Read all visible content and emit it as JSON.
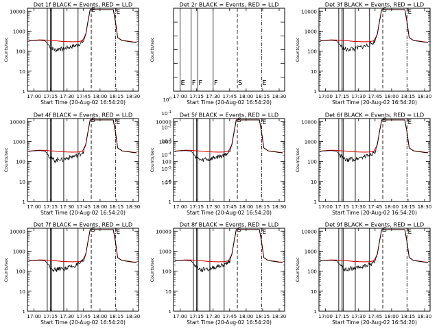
{
  "chart_data": {
    "type": "line",
    "grid": false,
    "x_ticks": [
      "17:00",
      "17:15",
      "17:30",
      "17:45",
      "18:00",
      "18:15",
      "18:30"
    ],
    "xlabel": "Start Time (20-Aug-02 16:54:20)",
    "ylabel": "Counts/sec",
    "xlim_minutes_from_1700": [
      -6,
      95
    ],
    "series_colors": {
      "events": "#000000",
      "lld": "#d40000"
    },
    "standard_panel": {
      "y_scale": "log",
      "ylim": [
        1,
        14000
      ],
      "y_ticks": [
        "1",
        "10",
        "100",
        "1000",
        "10000"
      ],
      "markers": [
        {
          "label": "",
          "time": "17:12",
          "style": "solid"
        },
        {
          "label": "",
          "time": "17:15",
          "style": "solid"
        },
        {
          "label": "",
          "time": "17:16",
          "style": "solid"
        },
        {
          "label": "",
          "time": "17:27",
          "style": "solid"
        },
        {
          "label": "",
          "time": "17:40",
          "style": "solid"
        },
        {
          "label": "S",
          "time": "17:52",
          "style": "dashed"
        },
        {
          "label": "E",
          "time": "18:14",
          "style": "dashdot"
        }
      ],
      "events_counts_sec": [
        [
          "16:55",
          330
        ],
        [
          "17:00",
          340
        ],
        [
          "17:05",
          350
        ],
        [
          "17:10",
          330
        ],
        [
          "17:13",
          210
        ],
        [
          "17:15",
          160
        ],
        [
          "17:17",
          130
        ],
        [
          "17:20",
          110
        ],
        [
          "17:23",
          140
        ],
        [
          "17:26",
          120
        ],
        [
          "17:30",
          150
        ],
        [
          "17:33",
          165
        ],
        [
          "17:36",
          180
        ],
        [
          "17:40",
          210
        ],
        [
          "17:43",
          260
        ],
        [
          "17:45",
          320
        ],
        [
          "17:47",
          700
        ],
        [
          "17:49",
          3000
        ],
        [
          "17:51",
          12000
        ],
        [
          "18:12",
          12000
        ],
        [
          "18:14",
          3000
        ],
        [
          "18:16",
          480
        ],
        [
          "18:20",
          340
        ],
        [
          "18:25",
          310
        ],
        [
          "18:30",
          280
        ],
        [
          "18:33",
          270
        ]
      ],
      "lld_counts_sec": [
        [
          "16:55",
          330
        ],
        [
          "17:00",
          350
        ],
        [
          "17:05",
          365
        ],
        [
          "17:10",
          360
        ],
        [
          "17:15",
          340
        ],
        [
          "17:20",
          330
        ],
        [
          "17:25",
          310
        ],
        [
          "17:30",
          300
        ],
        [
          "17:35",
          295
        ],
        [
          "17:40",
          300
        ],
        [
          "17:44",
          330
        ],
        [
          "17:47",
          700
        ],
        [
          "17:49",
          3000
        ],
        [
          "17:51",
          12000
        ],
        [
          "18:12",
          12000
        ],
        [
          "18:14",
          3000
        ],
        [
          "18:16",
          480
        ],
        [
          "18:20",
          340
        ],
        [
          "18:25",
          320
        ],
        [
          "18:30",
          290
        ],
        [
          "18:33",
          280
        ]
      ]
    },
    "panels": [
      {
        "title": "Det 1f BLACK = Events, RED = LLD",
        "kind": "standard",
        "top_label": "E",
        "ylabel": "Counts/sec"
      },
      {
        "title": "Det 2r BLACK = Events, RED = LLD",
        "kind": "empty",
        "ylabel": "Counts/sec",
        "y_ticks": [
          "10^-6",
          "10^-5",
          "10^-4",
          "10^-3",
          "10^-2",
          "10^-1",
          "10^0"
        ],
        "markers": [
          {
            "label": "E",
            "time": "17:00",
            "style": "solid"
          },
          {
            "label": "F",
            "time": "17:10",
            "style": "solid"
          },
          {
            "label": "F",
            "time": "17:16",
            "style": "solid"
          },
          {
            "label": "F",
            "time": "17:30",
            "style": "solid"
          },
          {
            "label": "S",
            "time": "17:52",
            "style": "dashed"
          },
          {
            "label": "E",
            "time": "18:14",
            "style": "dashdot"
          }
        ]
      },
      {
        "title": "Det 3f BLACK = Events, RED = LLD",
        "kind": "standard",
        "top_label": "S",
        "ylabel": "Counts/sec"
      },
      {
        "title": "Det 4f BLACK = Events, RED = LLD",
        "kind": "standard",
        "top_label": "S",
        "ylabel": "Counts/sec"
      },
      {
        "title": "Det 5f BLACK = Events, RED = LLD",
        "kind": "standard",
        "top_label": "S",
        "ylabel": "Counts/sec"
      },
      {
        "title": "Det 6f BLACK = Events, RED = LLD",
        "kind": "standard",
        "top_label": "S",
        "ylabel": "Counts/sec"
      },
      {
        "title": "Det 7f BLACK = Events, RED = LLD",
        "kind": "standard",
        "top_label": "S",
        "ylabel": "Counts/sec"
      },
      {
        "title": "Det 8f BLACK = Events, RED = LLD",
        "kind": "standard",
        "top_label": "S",
        "ylabel": "Counts/sec"
      },
      {
        "title": "Det 9f BLACK = Events, RED = LLD",
        "kind": "standard",
        "top_label": "S",
        "ylabel": "Counts/sec"
      }
    ]
  }
}
